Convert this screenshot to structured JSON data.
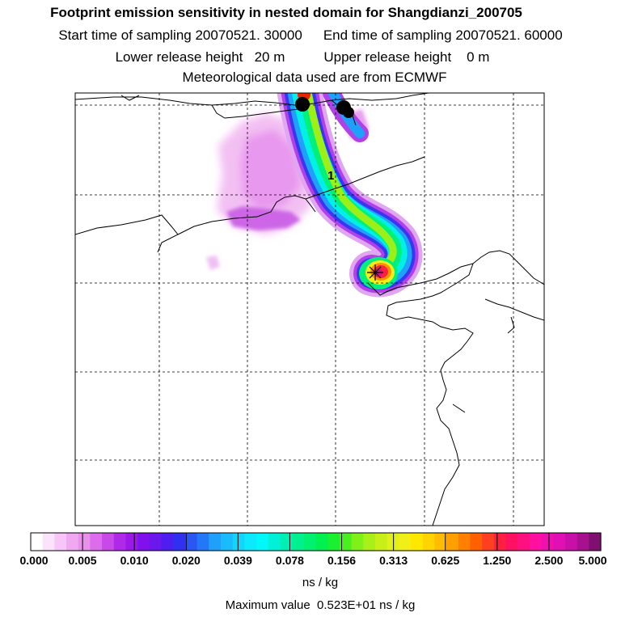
{
  "header": {
    "title": "Footprint emission sensitivity in nested domain for Shangdianzi_200705",
    "start_label": "Start time of sampling",
    "start_value": "20070521. 30000",
    "end_label": "End time of sampling",
    "end_value": "20070521. 60000",
    "lower_label": "Lower release height",
    "lower_value": "20 m",
    "upper_label": "Upper release height",
    "upper_value": "0 m",
    "met_note": "Meteorological data used are from ECMWF"
  },
  "map": {
    "contour_label": "1",
    "receptor_marker": "asterisk-icon",
    "markers": [
      {
        "name": "red-dot-marker",
        "color": "#ee2200"
      },
      {
        "name": "black-dot-marker-1",
        "color": "#000000"
      },
      {
        "name": "black-dot-marker-2",
        "color": "#000000"
      }
    ]
  },
  "colorbar": {
    "tick_labels": [
      "0.000",
      "0.005",
      "0.010",
      "0.020",
      "0.039",
      "0.078",
      "0.156",
      "0.313",
      "0.625",
      "1.250",
      "2.500",
      "5.000"
    ],
    "colors": [
      "#ffffff",
      "#fbe3fb",
      "#f6c6f6",
      "#f0a8f0",
      "#e890ec",
      "#dc6cec",
      "#c848e8",
      "#b028e8",
      "#9c18e8",
      "#8010ec",
      "#6a18ee",
      "#4e1ef0",
      "#3030f0",
      "#2a56f4",
      "#2478f8",
      "#1ea0fb",
      "#18bcfc",
      "#12d4fd",
      "#0ce8fe",
      "#00f8f8",
      "#00f0d8",
      "#00f0b4",
      "#00f090",
      "#00f070",
      "#00f050",
      "#18f030",
      "#48f020",
      "#80f018",
      "#a8f018",
      "#c8f018",
      "#e0f018",
      "#f0f018",
      "#ffe800",
      "#ffd400",
      "#ffbc00",
      "#ffa000",
      "#ff8000",
      "#ff6000",
      "#ff4020",
      "#ff2040",
      "#ff1060",
      "#ff1080",
      "#ff10a0",
      "#f010b0",
      "#e010b4",
      "#c810a8",
      "#a81090",
      "#801070"
    ],
    "units": "ns / kg",
    "max_label": "Maximum value",
    "max_value": "0.523E+01 ns / kg"
  }
}
